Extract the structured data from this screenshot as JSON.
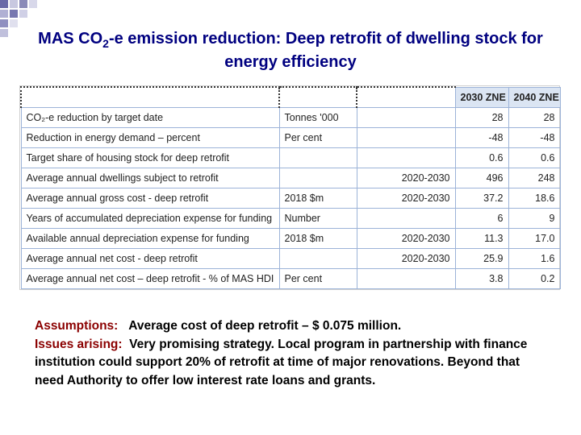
{
  "title": {
    "part1": "MAS CO",
    "sub": "2",
    "part2": "-e emission reduction: Deep retrofit of dwelling stock for energy efficiency"
  },
  "table": {
    "headers": [
      "",
      "",
      "",
      "2030 ZNE",
      "2040 ZNE"
    ],
    "rows": [
      {
        "label": "CO₂-e reduction by target date",
        "unit": "Tonnes '000",
        "period": "",
        "v2030": "28",
        "v2040": "28"
      },
      {
        "label": "Reduction in energy demand – percent",
        "unit": "Per cent",
        "period": "",
        "v2030": "-48",
        "v2040": "-48"
      },
      {
        "label": "Target share of housing stock for deep retrofit",
        "unit": "",
        "period": "",
        "v2030": "0.6",
        "v2040": "0.6"
      },
      {
        "label": "Average annual dwellings subject to retrofit",
        "unit": "",
        "period": "2020-2030",
        "v2030": "496",
        "v2040": "248"
      },
      {
        "label": "Average annual gross cost - deep retrofit",
        "unit": "2018 $m",
        "period": "2020-2030",
        "v2030": "37.2",
        "v2040": "18.6"
      },
      {
        "label": "Years of accumulated depreciation expense for funding",
        "unit": "Number",
        "period": "",
        "v2030": "6",
        "v2040": "9"
      },
      {
        "label": "Available annual depreciation expense for funding",
        "unit": "2018 $m",
        "period": "2020-2030",
        "v2030": "11.3",
        "v2040": "17.0"
      },
      {
        "label": "Average annual net cost - deep retrofit",
        "unit": "",
        "period": "2020-2030",
        "v2030": "25.9",
        "v2040": "1.6"
      },
      {
        "label": "Average annual net cost – deep retrofit - % of MAS HDI",
        "unit": "Per cent",
        "period": "",
        "v2030": "3.8",
        "v2040": "0.2"
      }
    ]
  },
  "notes": {
    "assumptions_label": "Assumptions:",
    "assumptions_text": "Average cost of deep retrofit – $ 0.075 million.",
    "issues_label": "Issues arising:",
    "issues_text": "Very promising strategy. Local program in partnership with finance institution could support 20% of retrofit at time of major renovations.  Beyond that need Authority to offer low interest rate loans and grants."
  },
  "colors": {
    "title": "#000080",
    "label": "#8b0000",
    "header_fill": "#dbe5f3",
    "grid": "#9cb3d8"
  }
}
